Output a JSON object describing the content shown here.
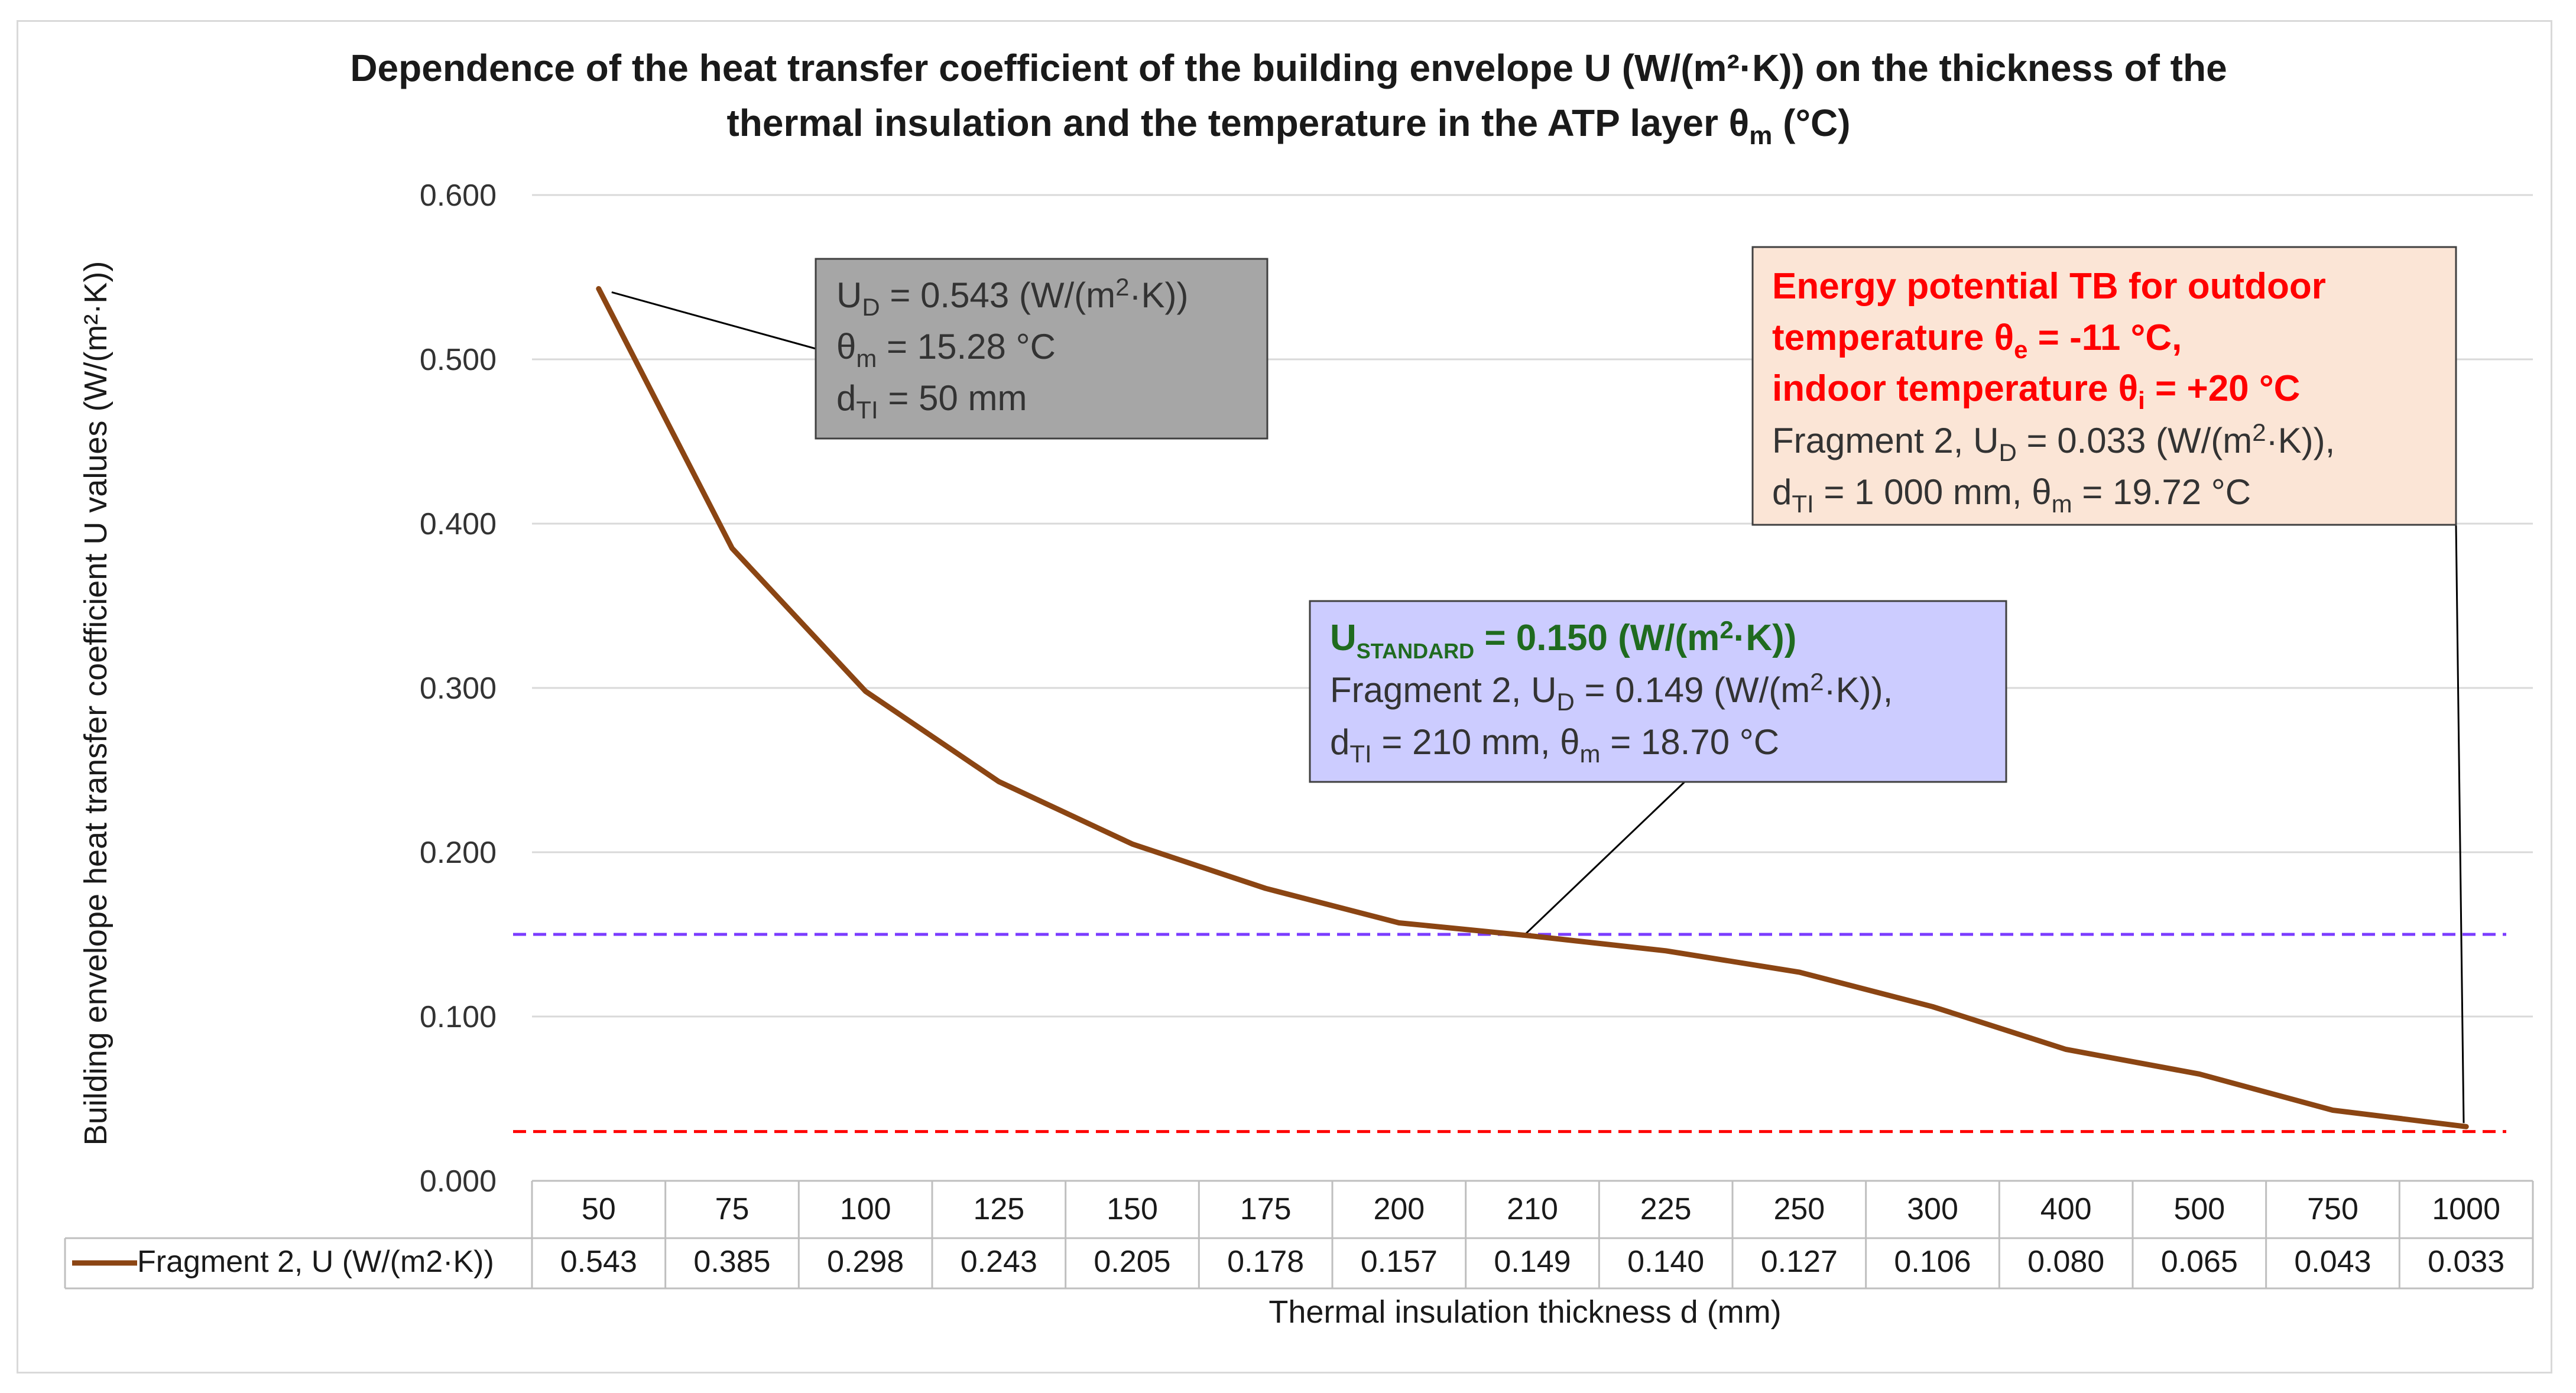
{
  "chart_data": {
    "type": "line",
    "title_line1": "Dependence of the heat transfer coefficient of the building envelope U (W/(m²·K)) on the thickness of the",
    "title_line2_a": "thermal insulation and the temperature in the ATP layer θ",
    "title_line2_sub": "m",
    "title_line2_b": " (°C)",
    "ylabel": "Building envelope heat transfer coefficient U values (W/(m²·K))",
    "xlabel": "Thermal insulation thickness d (mm)",
    "ylim": [
      0,
      0.6
    ],
    "yticks": [
      "0.000",
      "0.100",
      "0.200",
      "0.300",
      "0.400",
      "0.500",
      "0.600"
    ],
    "categories": [
      "50",
      "75",
      "100",
      "125",
      "150",
      "175",
      "200",
      "210",
      "225",
      "250",
      "300",
      "400",
      "500",
      "750",
      "1000"
    ],
    "series": [
      {
        "name": "Fragment 2, U (W/(m2·K))",
        "color": "#8b4513",
        "values": [
          0.543,
          0.385,
          0.298,
          0.243,
          0.205,
          0.178,
          0.157,
          0.149,
          0.14,
          0.127,
          0.106,
          0.08,
          0.065,
          0.043,
          0.033
        ],
        "labels": [
          "0.543",
          "0.385",
          "0.298",
          "0.243",
          "0.205",
          "0.178",
          "0.157",
          "0.149",
          "0.140",
          "0.127",
          "0.106",
          "0.080",
          "0.065",
          "0.043",
          "0.033"
        ]
      }
    ],
    "reference_lines": [
      {
        "name": "U standard",
        "value": 0.15,
        "color": "#7b3cff"
      },
      {
        "name": "Energy potential",
        "value": 0.03,
        "color": "#ff0000"
      }
    ],
    "annotations": {
      "first": {
        "l1_a": "U",
        "l1_sub": "D",
        "l1_b": " = 0.543 (W/(m",
        "l1_sup": "2",
        "l1_c": "·K))",
        "l2_a": "θ",
        "l2_sub": "m",
        "l2_b": " = 15.28 °C",
        "l3_a": "d",
        "l3_sub": "TI",
        "l3_b": " = 50 mm",
        "bg": "#a6a6a6"
      },
      "standard": {
        "l1_a": "U",
        "l1_sub": "STANDARD",
        "l1_b": " = 0.150 (W/(m",
        "l1_sup": "2",
        "l1_c": "·K))",
        "l2_a": "Fragment 2, U",
        "l2_sub": "D",
        "l2_b": " = 0.149 (W/(m",
        "l2_sup": "2",
        "l2_c": "·K)),",
        "l3_a": "d",
        "l3_sub": "TI",
        "l3_b": " = 210 mm, θ",
        "l3_sub2": "m",
        "l3_c": " = 18.70 °C",
        "bg": "#ccccff"
      },
      "energy": {
        "l1": "Energy potential TB for outdoor",
        "l2_a": "temperature θ",
        "l2_sub": "e",
        "l2_b": " = -11 °C,",
        "l3_a": "indoor temperature θ",
        "l3_sub": "i",
        "l3_b": " = +20 °C",
        "l4_a": "Fragment 2, U",
        "l4_sub": "D",
        "l4_b": " = 0.033 (W/(m",
        "l4_sup": "2",
        "l4_c": "·K)),",
        "l5_a": "d",
        "l5_sub": "TI",
        "l5_b": " = 1 000 mm, θ",
        "l5_sub2": "m",
        "l5_c": " = 19.72 °C",
        "bg": "#fbe5d6"
      }
    }
  }
}
